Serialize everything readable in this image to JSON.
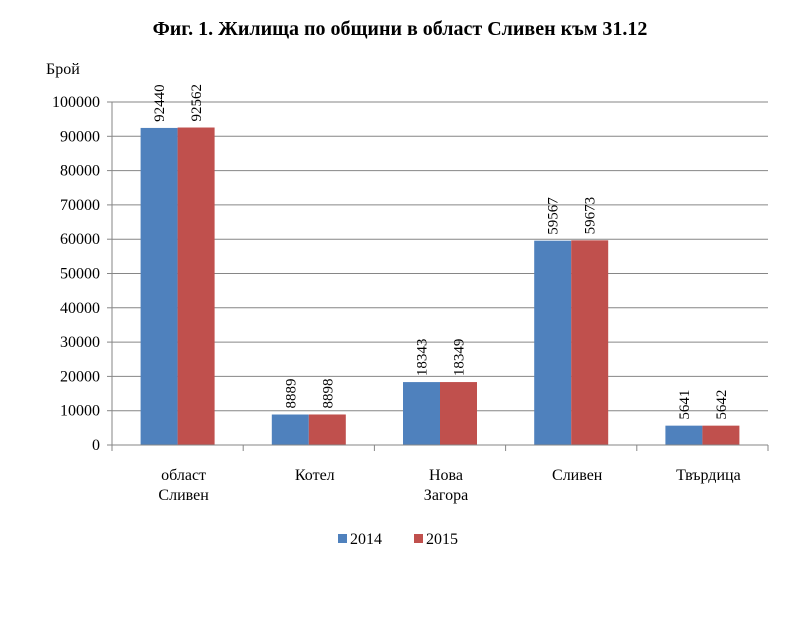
{
  "chart_data": {
    "type": "bar",
    "title": "Фиг. 1. Жилища по общини в област Сливен към 31.12",
    "ylabel": "Брой",
    "xlabel": "",
    "categories": [
      [
        "област",
        "Сливен"
      ],
      [
        "Котел"
      ],
      [
        "Нова",
        "Загора"
      ],
      [
        "Сливен"
      ],
      [
        "Твърдица"
      ]
    ],
    "series": [
      {
        "name": "2014",
        "color": "#4f81bd",
        "values": [
          92440,
          8889,
          18343,
          59567,
          5641
        ]
      },
      {
        "name": "2015",
        "color": "#c0504d",
        "values": [
          92562,
          8898,
          18349,
          59673,
          5642
        ]
      }
    ],
    "ylim": [
      0,
      100000
    ],
    "yticks": [
      "0",
      "10000",
      "20000",
      "30000",
      "40000",
      "50000",
      "60000",
      "70000",
      "80000",
      "90000",
      "100000"
    ],
    "grid": true,
    "legend_position": "bottom"
  }
}
